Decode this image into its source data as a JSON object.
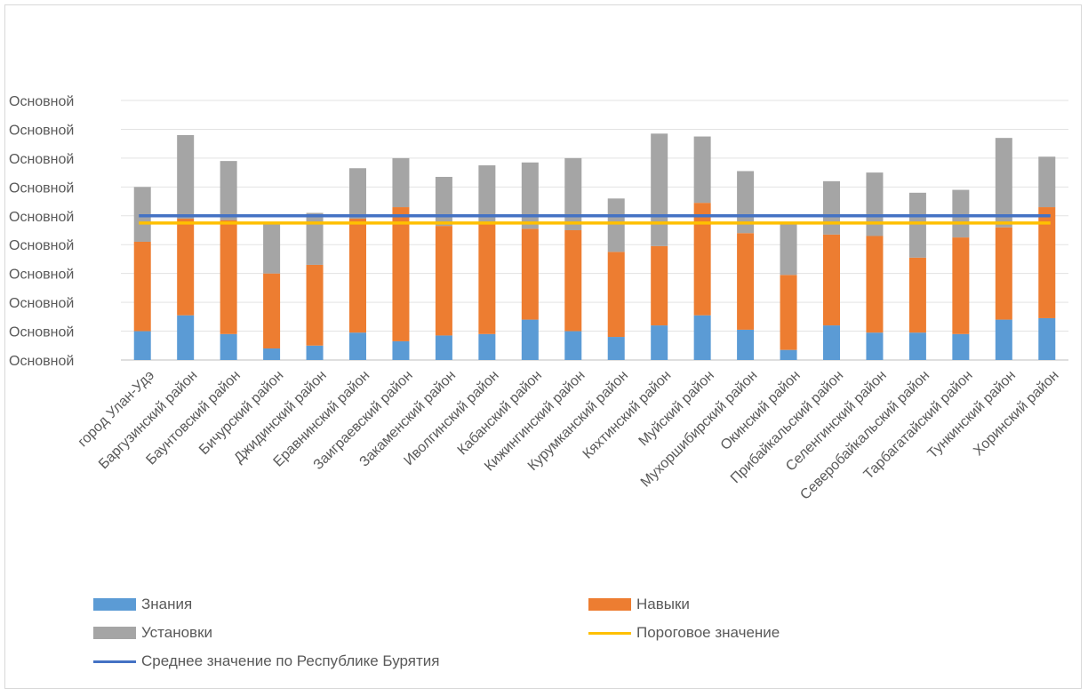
{
  "chart_data": {
    "type": "bar",
    "stacked": true,
    "categories": [
      "город Улан-Удэ",
      "Баргузинский район",
      "Баунтовский район",
      "Бичурский район",
      "Джидинский район",
      "Еравнинский район",
      "Заиграевский район",
      "Закаменский район",
      "Иволгинский район",
      "Кабанский район",
      "Кижингинский район",
      "Курумканский район",
      "Кяхтинский район",
      "Муйский район",
      "Мухоршибирский район",
      "Окинский район",
      "Прибайкальский район",
      "Селенгинский район",
      "Северобайкальский район",
      "Тарбагатайский район",
      "Тункинский район",
      "Хоринский район"
    ],
    "y_tick_labels": [
      "Основной",
      "Основной",
      "Основной",
      "Основной",
      "Основной",
      "Основной",
      "Основной",
      "Основной",
      "Основной",
      "Основной"
    ],
    "ylim": [
      0,
      9
    ],
    "grid": true,
    "series": [
      {
        "name": "Знания",
        "kind": "bar",
        "color": "#5b9bd5",
        "values": [
          1.0,
          1.55,
          0.9,
          0.4,
          0.5,
          0.95,
          0.65,
          0.85,
          0.9,
          1.4,
          1.0,
          0.8,
          1.2,
          1.55,
          1.05,
          0.35,
          1.2,
          0.95,
          0.95,
          0.9,
          1.4,
          1.45
        ]
      },
      {
        "name": "Навыки",
        "kind": "bar",
        "color": "#ed7d31",
        "values": [
          3.1,
          3.35,
          3.95,
          2.6,
          2.8,
          3.95,
          4.65,
          3.8,
          3.8,
          3.15,
          3.5,
          2.95,
          2.75,
          3.9,
          3.35,
          2.6,
          3.15,
          3.35,
          2.6,
          3.35,
          3.2,
          3.85
        ]
      },
      {
        "name": "Установки",
        "kind": "bar",
        "color": "#a5a5a5",
        "values": [
          1.9,
          2.9,
          2.05,
          1.75,
          1.8,
          1.75,
          1.7,
          1.7,
          2.05,
          2.3,
          2.5,
          1.85,
          3.9,
          2.3,
          2.15,
          1.8,
          1.85,
          2.2,
          2.25,
          1.65,
          3.1,
          1.75
        ]
      },
      {
        "name": "Пороговое значение",
        "kind": "line",
        "color": "#ffc000",
        "value": 4.75
      },
      {
        "name": "Среднее значение по Республике Бурятия",
        "kind": "line",
        "color": "#4472c4",
        "value": 5.0
      }
    ],
    "legend_position": "bottom"
  }
}
